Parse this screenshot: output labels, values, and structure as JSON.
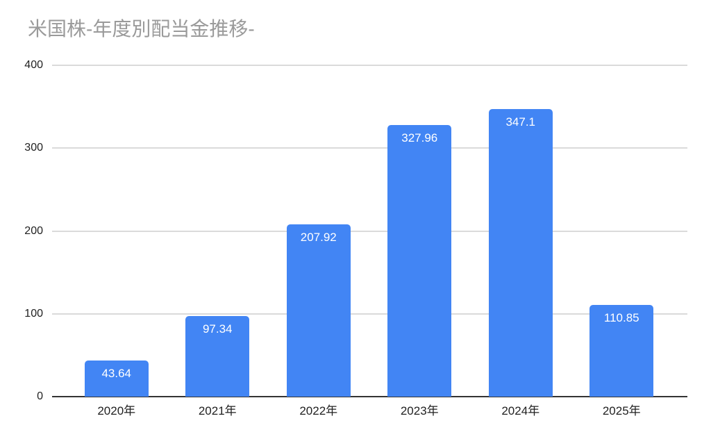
{
  "title": "米国株-年度別配当金推移-",
  "chart_data": {
    "type": "bar",
    "title": "米国株-年度別配当金推移-",
    "categories": [
      "2020年",
      "2021年",
      "2022年",
      "2023年",
      "2024年",
      "2025年"
    ],
    "values": [
      43.64,
      97.34,
      207.92,
      327.96,
      347.1,
      110.85
    ],
    "value_labels": [
      "43.64",
      "97.34",
      "207.92",
      "327.96",
      "347.1",
      "110.85"
    ],
    "xlabel": "",
    "ylabel": "",
    "ylim": [
      0,
      400
    ],
    "yticks": [
      0,
      100,
      200,
      300,
      400
    ],
    "grid": true,
    "legend": "none",
    "colors": {
      "bar": "#4285f4",
      "value_label": "#ffffff",
      "title": "#9a9a9a",
      "axis_label": "#1f1f1f",
      "gridline": "#dadada",
      "baseline": "#333333",
      "background": "#ffffff"
    }
  }
}
